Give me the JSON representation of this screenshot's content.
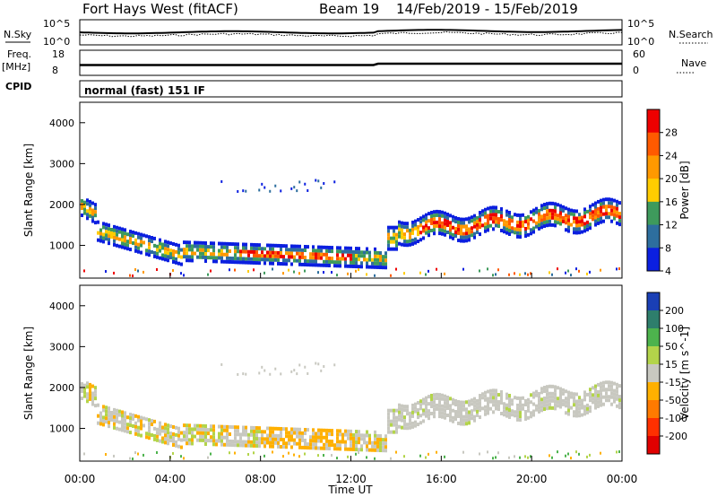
{
  "header": {
    "title": "Fort Hays West (fitACF)",
    "beam": "Beam 19",
    "date_range": "14/Feb/2019 - 15/Feb/2019"
  },
  "strips": {
    "nsky_label": "N.Sky",
    "nsky_ticks": [
      "10^5",
      "10^0"
    ],
    "nsearch_label": "N.Search",
    "nsearch_ticks": [
      "10^5",
      "10^0"
    ],
    "freq_label": "Freq.",
    "freq_unit": "[MHz]",
    "freq_ticks": [
      "18",
      "8"
    ],
    "nave_label": "Nave",
    "nave_ticks": [
      "60",
      "0"
    ],
    "cpid_label": "CPID",
    "cpid_value": "normal (fast) 151 IF"
  },
  "chart_data": [
    {
      "type": "heatmap",
      "name": "power",
      "ylabel": "Slant Range [km]",
      "ylim": [
        200,
        4500
      ],
      "yticks": [
        "1000",
        "2000",
        "3000",
        "4000"
      ],
      "colorbar_label": "Power [dB]",
      "colorbar_ticks": [
        "28",
        "24",
        "20",
        "16",
        "12",
        "8",
        "4"
      ],
      "colorbar_colors": [
        "#ee0000",
        "#ff5a00",
        "#ff9900",
        "#ffcc00",
        "#3e9a5c",
        "#2d6e9e",
        "#0b1fe0"
      ]
    },
    {
      "type": "heatmap",
      "name": "velocity",
      "ylabel": "Slant Range [km]",
      "xlabel": "Time UT",
      "ylim": [
        200,
        4500
      ],
      "yticks": [
        "1000",
        "2000",
        "3000",
        "4000"
      ],
      "xticks": [
        "00:00",
        "04:00",
        "08:00",
        "12:00",
        "16:00",
        "20:00",
        "00:00"
      ],
      "colorbar_label": "Velocity [m s^-1]",
      "colorbar_ticks": [
        "200",
        "100",
        "50",
        "15",
        "-15",
        "-50",
        "-100",
        "-200"
      ],
      "colorbar_colors": [
        "#1a3fb5",
        "#2e7e6c",
        "#4db34d",
        "#b3d44a",
        "#c8c8c0",
        "#ffb000",
        "#ff7a00",
        "#ff3000",
        "#e00000"
      ]
    }
  ]
}
